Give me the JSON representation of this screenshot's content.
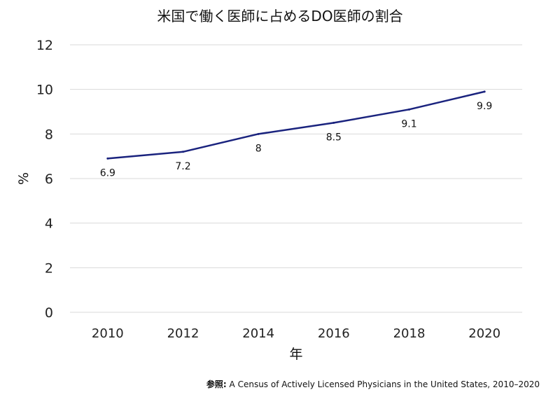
{
  "chart_data": {
    "type": "line",
    "title": "米国で働く医師に占めるDO医師の割合",
    "xlabel": "年",
    "ylabel": "%",
    "x": [
      "2010",
      "2012",
      "2014",
      "2016",
      "2018",
      "2020"
    ],
    "series": [
      {
        "values": [
          6.9,
          7.2,
          8,
          8.5,
          9.1,
          9.9
        ],
        "labels": [
          "6.9",
          "7.2",
          "8",
          "8.5",
          "9.1",
          "9.9"
        ],
        "color": "#1a237e"
      }
    ],
    "ylim": [
      0,
      12
    ],
    "yticks": [
      "0",
      "2",
      "4",
      "6",
      "8",
      "10",
      "12"
    ],
    "grid": true,
    "legend": "none"
  },
  "source": {
    "prefix": "参照:",
    "text": "A Census of Actively Licensed Physicians in the United States, 2010–2020"
  }
}
